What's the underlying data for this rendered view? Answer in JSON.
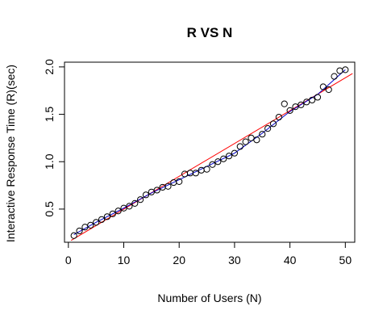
{
  "chart_data": {
    "type": "scatter",
    "title": "R VS N",
    "xlabel": "Number of Users (N)",
    "ylabel": "Interactive Response Time (R)(sec)",
    "xlim": [
      -0.7,
      51.7
    ],
    "ylim": [
      0.15,
      2.05
    ],
    "xticks": [
      "0",
      "10",
      "20",
      "30",
      "40",
      "50"
    ],
    "yticks": [
      "0.5",
      "1.0",
      "1.5",
      "2.0"
    ],
    "grid": false,
    "legend": "none",
    "point_color": "#000000",
    "smooth_color": "#0000cc",
    "regression_color": "#ff0000",
    "points": {
      "x": [
        1,
        2,
        3,
        4,
        5,
        6,
        7,
        8,
        9,
        10,
        11,
        12,
        13,
        14,
        15,
        16,
        17,
        18,
        19,
        20,
        21,
        22,
        23,
        24,
        25,
        26,
        27,
        28,
        29,
        30,
        31,
        32,
        33,
        34,
        35,
        36,
        37,
        38,
        39,
        40,
        41,
        42,
        43,
        44,
        45,
        46,
        47,
        48,
        49,
        50
      ],
      "y": [
        0.22,
        0.27,
        0.31,
        0.33,
        0.36,
        0.39,
        0.42,
        0.45,
        0.48,
        0.51,
        0.53,
        0.56,
        0.6,
        0.65,
        0.68,
        0.7,
        0.73,
        0.74,
        0.78,
        0.79,
        0.87,
        0.88,
        0.88,
        0.91,
        0.92,
        0.97,
        1.0,
        1.03,
        1.06,
        1.09,
        1.16,
        1.21,
        1.25,
        1.23,
        1.29,
        1.35,
        1.4,
        1.47,
        1.61,
        1.54,
        1.58,
        1.6,
        1.63,
        1.65,
        1.68,
        1.79,
        1.76,
        1.9,
        1.96,
        1.97
      ]
    },
    "smooth_line": {
      "x": [
        1,
        5,
        10,
        15,
        20,
        25,
        30,
        35,
        40,
        45,
        50
      ],
      "y": [
        0.23,
        0.36,
        0.51,
        0.67,
        0.81,
        0.95,
        1.09,
        1.3,
        1.53,
        1.71,
        1.97
      ]
    },
    "regression_line": {
      "x": [
        0.5,
        51.3
      ],
      "y": [
        0.17,
        1.93
      ]
    }
  }
}
